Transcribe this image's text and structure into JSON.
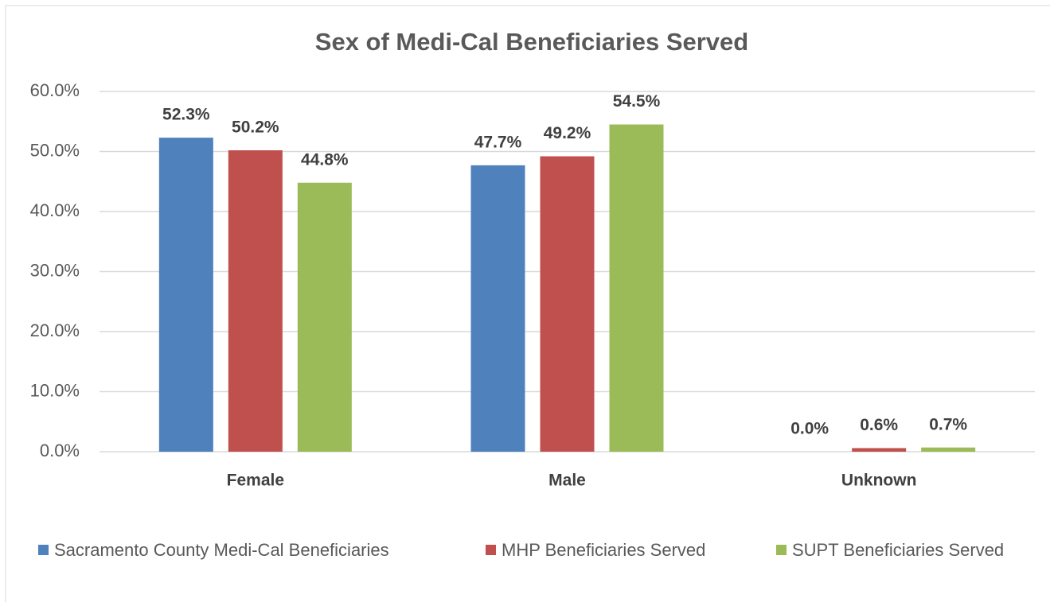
{
  "chart_data": {
    "type": "bar",
    "title": "Sex of Medi-Cal Beneficiaries Served",
    "categories": [
      "Female",
      "Male",
      "Unknown"
    ],
    "series": [
      {
        "name": "Sacramento County Medi-Cal Beneficiaries",
        "color": "#4f81bd",
        "values": [
          52.3,
          47.7,
          0.0
        ],
        "value_labels": [
          "52.3%",
          "47.7%",
          "0.0%"
        ]
      },
      {
        "name": "MHP Beneficiaries Served",
        "color": "#c0504d",
        "values": [
          50.2,
          49.2,
          0.6
        ],
        "value_labels": [
          "50.2%",
          "49.2%",
          "0.6%"
        ]
      },
      {
        "name": "SUPT Beneficiaries Served",
        "color": "#9bbb59",
        "values": [
          44.8,
          54.5,
          0.7
        ],
        "value_labels": [
          "44.8%",
          "54.5%",
          "0.7%"
        ]
      }
    ],
    "ylim": [
      0,
      60
    ],
    "yticks": [
      {
        "value": 0,
        "label": "0.0%"
      },
      {
        "value": 10,
        "label": "10.0%"
      },
      {
        "value": 20,
        "label": "20.0%"
      },
      {
        "value": 30,
        "label": "30.0%"
      },
      {
        "value": 40,
        "label": "40.0%"
      },
      {
        "value": 50,
        "label": "50.0%"
      },
      {
        "value": 60,
        "label": "60.0%"
      }
    ],
    "grid": true,
    "legend": "bottom"
  }
}
